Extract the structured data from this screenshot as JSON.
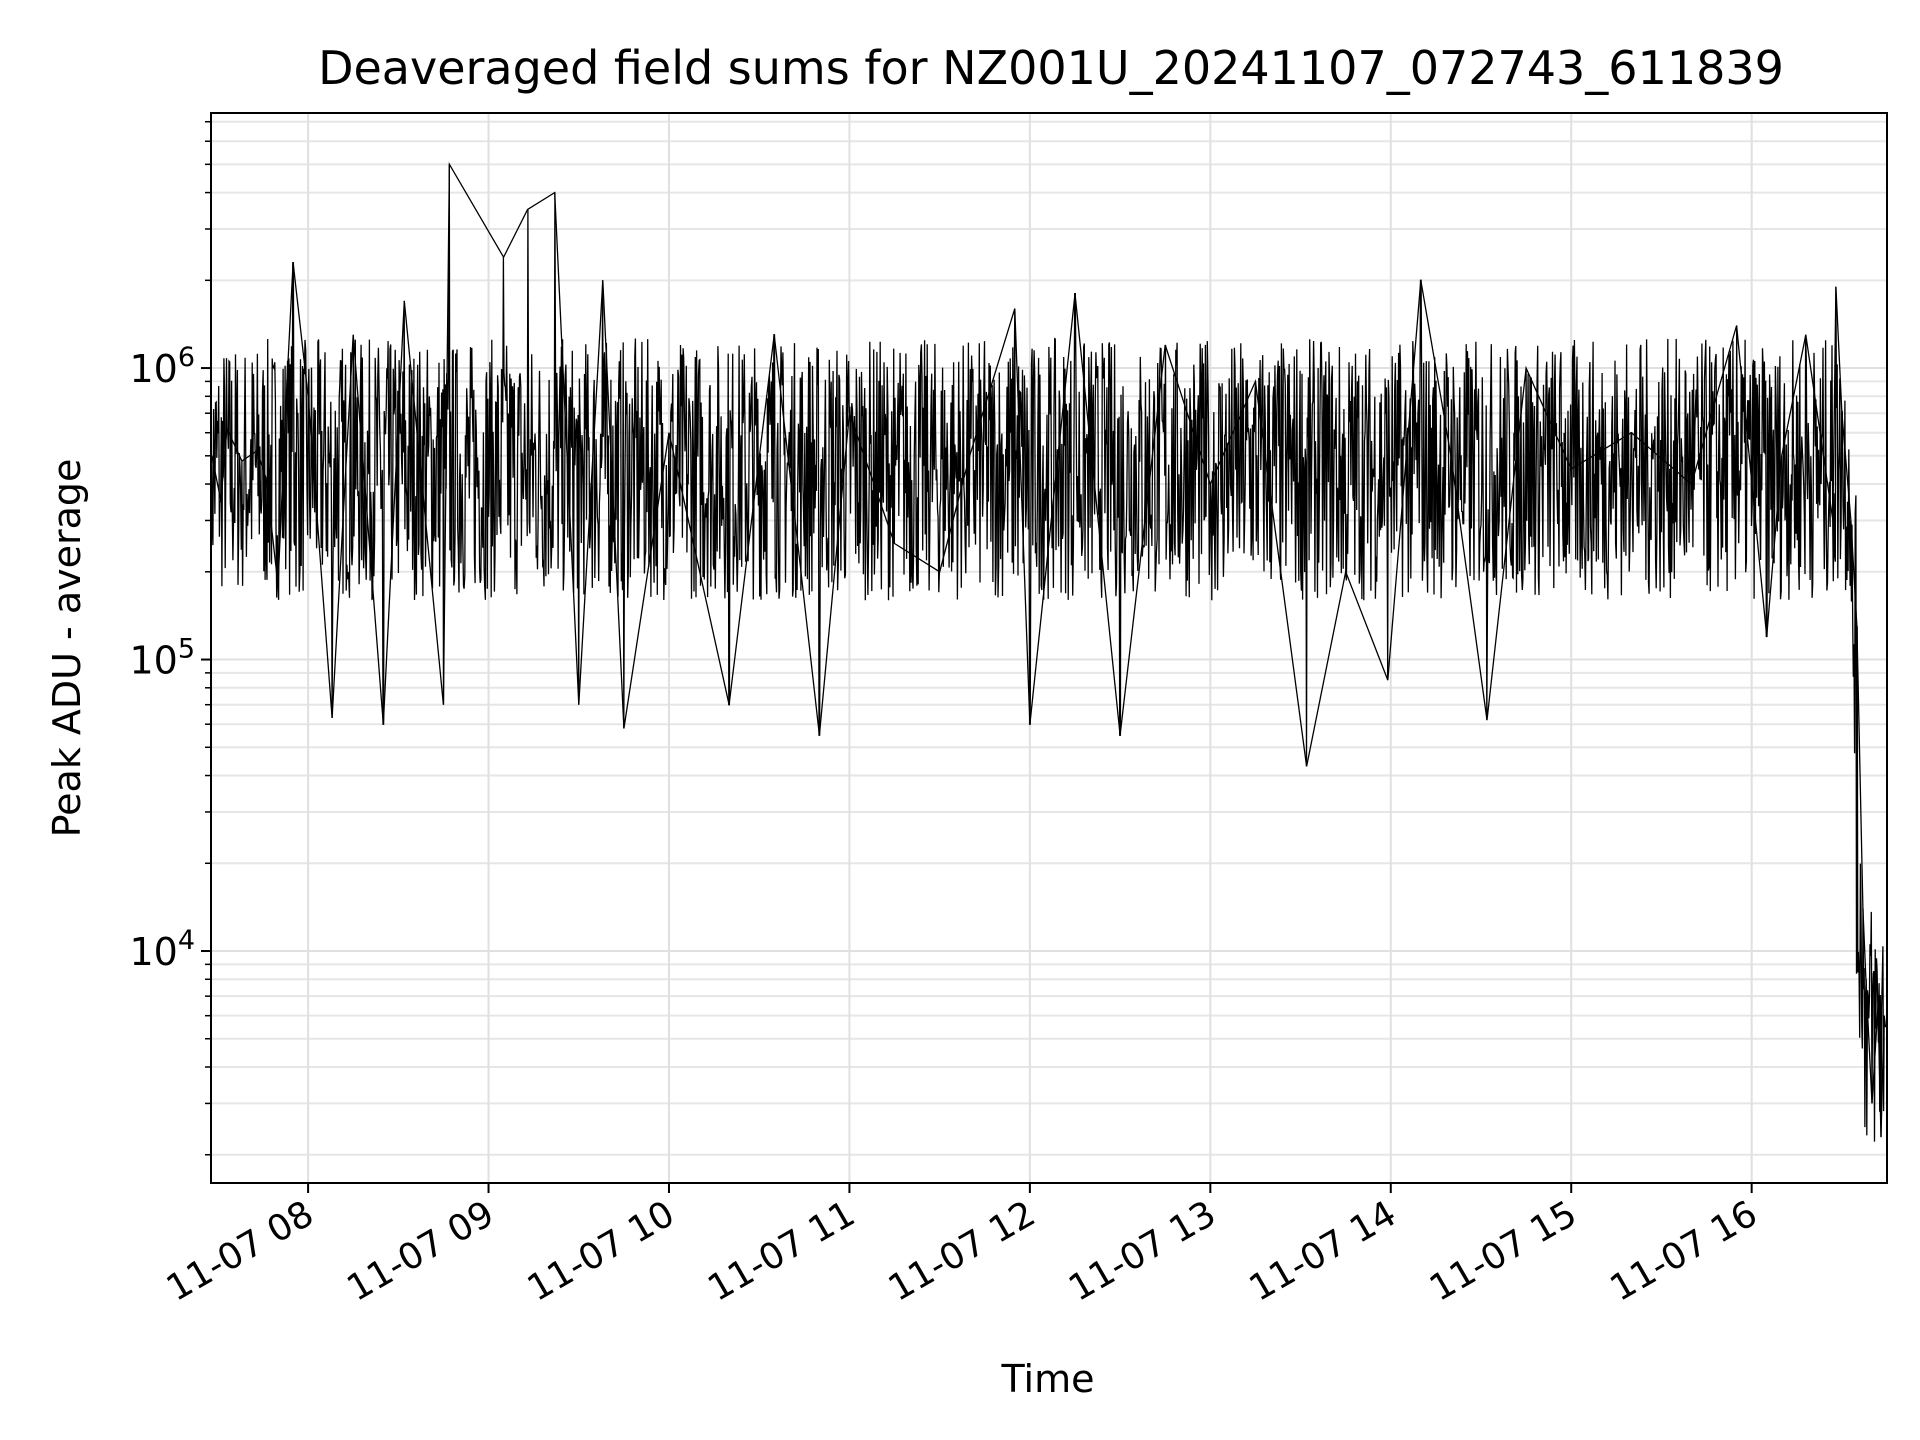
{
  "chart_data": {
    "type": "line",
    "title": "Deaveraged field sums for NZ001U_20241107_072743_611839",
    "xlabel": "Time",
    "ylabel": "Peak ADU - average",
    "x_ticks": [
      "11-07 08",
      "11-07 09",
      "11-07 10",
      "11-07 11",
      "11-07 12",
      "11-07 13",
      "11-07 14",
      "11-07 15",
      "11-07 16"
    ],
    "y_ticks": [
      {
        "value": 10000,
        "base": "10",
        "exp": "4"
      },
      {
        "value": 100000,
        "base": "10",
        "exp": "5"
      },
      {
        "value": 1000000,
        "base": "10",
        "exp": "6"
      }
    ],
    "xlim": [
      "2024-11-07 07:27:43",
      "2024-11-07 16:45:00"
    ],
    "ylim": [
      1600,
      7500000
    ],
    "yscale": "log",
    "grid": true,
    "line_color": "#000000",
    "series": [
      {
        "points": [
          [
            "2024-11-07 07:28",
            500000
          ],
          [
            "2024-11-07 07:31",
            350000
          ],
          [
            "2024-11-07 07:33",
            620000
          ],
          [
            "2024-11-07 07:38",
            480000
          ],
          [
            "2024-11-07 07:43",
            520000
          ],
          [
            "2024-11-07 07:46",
            420000
          ],
          [
            "2024-11-07 07:50",
            180000
          ],
          [
            "2024-11-07 07:53",
            900000
          ],
          [
            "2024-11-07 07:55",
            2300000
          ],
          [
            "2024-11-07 08:00",
            800000
          ],
          [
            "2024-11-07 08:08",
            63000
          ],
          [
            "2024-11-07 08:15",
            1300000
          ],
          [
            "2024-11-07 08:25",
            60000
          ],
          [
            "2024-11-07 08:32",
            1700000
          ],
          [
            "2024-11-07 08:45",
            70000
          ],
          [
            "2024-11-07 08:47",
            5000000
          ],
          [
            "2024-11-07 09:05",
            2400000
          ],
          [
            "2024-11-07 09:13",
            3500000
          ],
          [
            "2024-11-07 09:22",
            4000000
          ],
          [
            "2024-11-07 09:30",
            70000
          ],
          [
            "2024-11-07 09:38",
            2000000
          ],
          [
            "2024-11-07 09:45",
            58000
          ],
          [
            "2024-11-07 10:00",
            600000
          ],
          [
            "2024-11-07 10:20",
            70000
          ],
          [
            "2024-11-07 10:35",
            1300000
          ],
          [
            "2024-11-07 10:50",
            55000
          ],
          [
            "2024-11-07 11:00",
            700000
          ],
          [
            "2024-11-07 11:15",
            250000
          ],
          [
            "2024-11-07 11:30",
            200000
          ],
          [
            "2024-11-07 11:40",
            500000
          ],
          [
            "2024-11-07 11:55",
            1600000
          ],
          [
            "2024-11-07 12:00",
            60000
          ],
          [
            "2024-11-07 12:15",
            1800000
          ],
          [
            "2024-11-07 12:30",
            55000
          ],
          [
            "2024-11-07 12:45",
            1200000
          ],
          [
            "2024-11-07 13:00",
            400000
          ],
          [
            "2024-11-07 13:15",
            900000
          ],
          [
            "2024-11-07 13:32",
            43000
          ],
          [
            "2024-11-07 13:45",
            200000
          ],
          [
            "2024-11-07 13:59",
            85000
          ],
          [
            "2024-11-07 14:10",
            2000000
          ],
          [
            "2024-11-07 14:20",
            500000
          ],
          [
            "2024-11-07 14:32",
            62000
          ],
          [
            "2024-11-07 14:45",
            1000000
          ],
          [
            "2024-11-07 15:00",
            450000
          ],
          [
            "2024-11-07 15:20",
            600000
          ],
          [
            "2024-11-07 15:40",
            400000
          ],
          [
            "2024-11-07 15:55",
            1400000
          ],
          [
            "2024-11-07 16:05",
            120000
          ],
          [
            "2024-11-07 16:10",
            500000
          ],
          [
            "2024-11-07 16:18",
            1300000
          ],
          [
            "2024-11-07 16:27",
            300000
          ],
          [
            "2024-11-07 16:28",
            1900000
          ],
          [
            "2024-11-07 16:30",
            700000
          ],
          [
            "2024-11-07 16:33",
            300000
          ],
          [
            "2024-11-07 16:35",
            130000
          ],
          [
            "2024-11-07 16:37",
            14000
          ],
          [
            "2024-11-07 16:38",
            8000
          ],
          [
            "2024-11-07 16:40",
            3000
          ],
          [
            "2024-11-07 16:42",
            6500
          ],
          [
            "2024-11-07 16:43",
            2300
          ],
          [
            "2024-11-07 16:44",
            6000
          ]
        ]
      }
    ]
  }
}
